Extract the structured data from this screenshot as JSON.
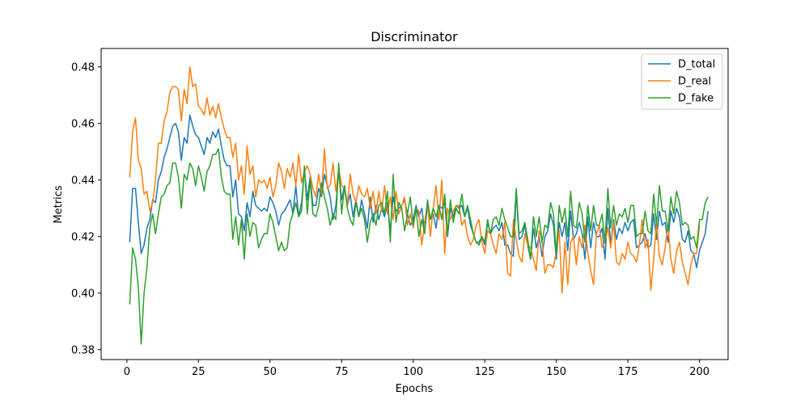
{
  "chart_data": {
    "type": "line",
    "title": "Discriminator",
    "xlabel": "Epochs",
    "ylabel": "Metrics",
    "xlim": [
      -9,
      210
    ],
    "ylim": [
      0.3765,
      0.4865
    ],
    "xticks": [
      0,
      25,
      50,
      75,
      100,
      125,
      150,
      175,
      200
    ],
    "yticks": [
      0.38,
      0.4,
      0.42,
      0.44,
      0.46,
      0.48
    ],
    "grid": false,
    "legend_position": "top-right",
    "series": [
      {
        "name": "D_total",
        "color": "#1f77b4",
        "x_start": 1,
        "values": [
          0.418,
          0.437,
          0.437,
          0.425,
          0.414,
          0.417,
          0.423,
          0.426,
          0.433,
          0.432,
          0.44,
          0.443,
          0.448,
          0.451,
          0.455,
          0.459,
          0.46,
          0.457,
          0.447,
          0.455,
          0.453,
          0.463,
          0.459,
          0.456,
          0.455,
          0.452,
          0.449,
          0.455,
          0.453,
          0.457,
          0.455,
          0.458,
          0.452,
          0.447,
          0.445,
          0.445,
          0.434,
          0.44,
          0.428,
          0.427,
          0.422,
          0.432,
          0.427,
          0.436,
          0.431,
          0.43,
          0.429,
          0.43,
          0.429,
          0.434,
          0.432,
          0.429,
          0.424,
          0.428,
          0.429,
          0.431,
          0.433,
          0.428,
          0.438,
          0.427,
          0.432,
          0.444,
          0.433,
          0.441,
          0.431,
          0.431,
          0.437,
          0.434,
          0.442,
          0.438,
          0.434,
          0.426,
          0.431,
          0.443,
          0.433,
          0.438,
          0.431,
          0.435,
          0.427,
          0.433,
          0.427,
          0.433,
          0.428,
          0.423,
          0.434,
          0.425,
          0.431,
          0.426,
          0.43,
          0.427,
          0.432,
          0.422,
          0.434,
          0.429,
          0.43,
          0.431,
          0.433,
          0.428,
          0.424,
          0.426,
          0.431,
          0.427,
          0.43,
          0.422,
          0.431,
          0.426,
          0.428,
          0.423,
          0.431,
          0.43,
          0.432,
          0.42,
          0.43,
          0.427,
          0.431,
          0.43,
          0.431,
          0.427,
          0.43,
          0.424,
          0.421,
          0.418,
          0.418,
          0.42,
          0.417,
          0.425,
          0.421,
          0.423,
          0.424,
          0.422,
          0.425,
          0.417,
          0.417,
          0.414,
          0.413,
          0.436,
          0.419,
          0.42,
          0.424,
          0.417,
          0.412,
          0.423,
          0.416,
          0.42,
          0.413,
          0.42,
          0.422,
          0.428,
          0.424,
          0.412,
          0.425,
          0.42,
          0.425,
          0.415,
          0.429,
          0.419,
          0.421,
          0.425,
          0.421,
          0.412,
          0.427,
          0.416,
          0.425,
          0.42,
          0.42,
          0.423,
          0.412,
          0.43,
          0.417,
          0.426,
          0.419,
          0.423,
          0.421,
          0.425,
          0.422,
          0.425,
          0.426,
          0.416,
          0.417,
          0.418,
          0.421,
          0.416,
          0.417,
          0.428,
          0.419,
          0.429,
          0.424,
          0.425,
          0.418,
          0.429,
          0.425,
          0.43,
          0.427,
          0.419,
          0.418,
          0.422,
          0.415,
          0.414,
          0.409,
          0.415,
          0.418,
          0.421,
          0.429
        ]
      },
      {
        "name": "D_real",
        "color": "#ff7f0e",
        "x_start": 1,
        "values": [
          0.441,
          0.457,
          0.462,
          0.447,
          0.444,
          0.435,
          0.436,
          0.429,
          0.432,
          0.44,
          0.453,
          0.453,
          0.461,
          0.464,
          0.471,
          0.473,
          0.473,
          0.472,
          0.461,
          0.472,
          0.467,
          0.48,
          0.473,
          0.474,
          0.466,
          0.465,
          0.463,
          0.469,
          0.463,
          0.466,
          0.462,
          0.467,
          0.462,
          0.458,
          0.455,
          0.455,
          0.448,
          0.453,
          0.44,
          0.445,
          0.435,
          0.452,
          0.442,
          0.445,
          0.434,
          0.44,
          0.439,
          0.44,
          0.437,
          0.441,
          0.434,
          0.438,
          0.446,
          0.443,
          0.437,
          0.444,
          0.441,
          0.446,
          0.438,
          0.449,
          0.439,
          0.443,
          0.445,
          0.442,
          0.437,
          0.434,
          0.442,
          0.435,
          0.451,
          0.437,
          0.438,
          0.446,
          0.436,
          0.444,
          0.438,
          0.437,
          0.431,
          0.442,
          0.435,
          0.432,
          0.438,
          0.435,
          0.434,
          0.437,
          0.43,
          0.436,
          0.428,
          0.436,
          0.429,
          0.438,
          0.428,
          0.434,
          0.426,
          0.436,
          0.428,
          0.431,
          0.434,
          0.424,
          0.428,
          0.423,
          0.43,
          0.429,
          0.417,
          0.425,
          0.432,
          0.42,
          0.43,
          0.438,
          0.426,
          0.44,
          0.414,
          0.43,
          0.426,
          0.429,
          0.431,
          0.431,
          0.424,
          0.426,
          0.42,
          0.417,
          0.419,
          0.424,
          0.426,
          0.418,
          0.414,
          0.422,
          0.421,
          0.417,
          0.414,
          0.421,
          0.419,
          0.425,
          0.407,
          0.406,
          0.426,
          0.419,
          0.413,
          0.411,
          0.421,
          0.417,
          0.416,
          0.412,
          0.408,
          0.422,
          0.419,
          0.407,
          0.41,
          0.41,
          0.409,
          0.415,
          0.422,
          0.4,
          0.418,
          0.403,
          0.418,
          0.42,
          0.41,
          0.42,
          0.416,
          0.424,
          0.414,
          0.408,
          0.403,
          0.421,
          0.424,
          0.416,
          0.418,
          0.423,
          0.416,
          0.425,
          0.411,
          0.41,
          0.414,
          0.412,
          0.418,
          0.414,
          0.413,
          0.411,
          0.417,
          0.426,
          0.416,
          0.419,
          0.401,
          0.412,
          0.425,
          0.413,
          0.41,
          0.416,
          0.424,
          0.412,
          0.407,
          0.415,
          0.418,
          0.411,
          0.407,
          0.403,
          0.41,
          0.414,
          0.414,
          0.424
        ]
      },
      {
        "name": "D_fake",
        "color": "#2ca02c",
        "x_start": 1,
        "values": [
          0.396,
          0.416,
          0.412,
          0.402,
          0.382,
          0.4,
          0.409,
          0.423,
          0.428,
          0.421,
          0.428,
          0.434,
          0.435,
          0.438,
          0.439,
          0.446,
          0.446,
          0.441,
          0.43,
          0.442,
          0.44,
          0.446,
          0.444,
          0.438,
          0.445,
          0.441,
          0.436,
          0.443,
          0.445,
          0.449,
          0.449,
          0.451,
          0.441,
          0.436,
          0.435,
          0.435,
          0.419,
          0.427,
          0.417,
          0.426,
          0.412,
          0.428,
          0.42,
          0.425,
          0.424,
          0.416,
          0.419,
          0.421,
          0.421,
          0.428,
          0.425,
          0.42,
          0.415,
          0.418,
          0.415,
          0.416,
          0.425,
          0.428,
          0.432,
          0.427,
          0.429,
          0.445,
          0.428,
          0.44,
          0.428,
          0.427,
          0.431,
          0.439,
          0.434,
          0.43,
          0.424,
          0.428,
          0.426,
          0.446,
          0.428,
          0.438,
          0.43,
          0.426,
          0.424,
          0.432,
          0.427,
          0.43,
          0.426,
          0.418,
          0.425,
          0.428,
          0.424,
          0.431,
          0.432,
          0.428,
          0.436,
          0.418,
          0.442,
          0.425,
          0.432,
          0.43,
          0.422,
          0.428,
          0.434,
          0.424,
          0.43,
          0.42,
          0.426,
          0.421,
          0.433,
          0.426,
          0.43,
          0.427,
          0.431,
          0.426,
          0.435,
          0.421,
          0.433,
          0.425,
          0.43,
          0.428,
          0.435,
          0.427,
          0.431,
          0.426,
          0.421,
          0.418,
          0.417,
          0.42,
          0.418,
          0.426,
          0.421,
          0.426,
          0.427,
          0.424,
          0.43,
          0.426,
          0.423,
          0.42,
          0.42,
          0.437,
          0.421,
          0.422,
          0.425,
          0.419,
          0.412,
          0.427,
          0.42,
          0.427,
          0.418,
          0.424,
          0.423,
          0.432,
          0.428,
          0.414,
          0.431,
          0.425,
          0.43,
          0.42,
          0.436,
          0.424,
          0.423,
          0.432,
          0.428,
          0.418,
          0.431,
          0.422,
          0.431,
          0.424,
          0.424,
          0.428,
          0.418,
          0.437,
          0.423,
          0.431,
          0.424,
          0.428,
          0.427,
          0.43,
          0.425,
          0.431,
          0.431,
          0.42,
          0.421,
          0.421,
          0.429,
          0.422,
          0.421,
          0.435,
          0.424,
          0.438,
          0.429,
          0.429,
          0.422,
          0.434,
          0.428,
          0.436,
          0.432,
          0.424,
          0.425,
          0.424,
          0.419,
          0.42,
          0.416,
          0.426,
          0.426,
          0.432,
          0.434
        ]
      }
    ]
  }
}
